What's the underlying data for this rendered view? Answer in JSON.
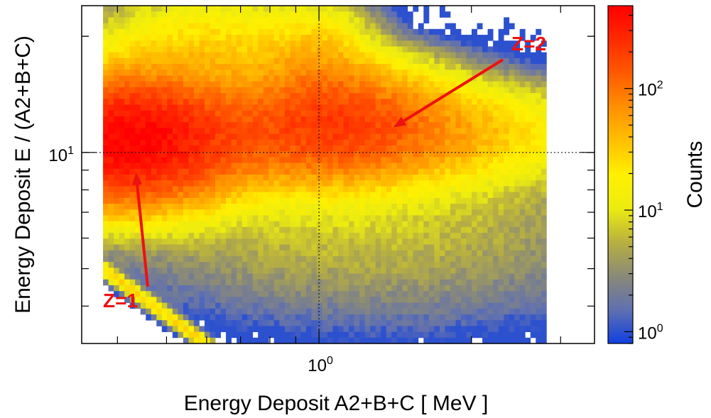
{
  "chart_data": {
    "type": "heatmap",
    "title": "",
    "xlabel": "Energy Deposit A2+B+C [ MeV ]",
    "ylabel": "Energy Deposit E / (A2+B+C)",
    "xscale": "log",
    "yscale": "log",
    "xlim": [
      0.34,
      3.5
    ],
    "ylim": [
      3.2,
      24
    ],
    "x_ticks": [
      {
        "value": 1,
        "label": "10",
        "exp": "0"
      }
    ],
    "y_ticks": [
      {
        "value": 10,
        "label": "10",
        "exp": "1"
      }
    ],
    "reference_lines": {
      "x": 1,
      "y": 10,
      "style": "dotted"
    },
    "colorbar": {
      "label": "Counts",
      "scale": "log",
      "range": [
        0.8,
        480
      ],
      "ticks": [
        {
          "value": 1,
          "label": "10",
          "exp": "0"
        },
        {
          "value": 10,
          "label": "10",
          "exp": "1"
        },
        {
          "value": 100,
          "label": "10",
          "exp": "2"
        }
      ],
      "palette": [
        "#1040e0",
        "#6070b0",
        "#8a8a78",
        "#b8b040",
        "#ecec10",
        "#fff000",
        "#ffc000",
        "#ff9000",
        "#ff5a00",
        "#ff2a00",
        "#ff0000"
      ]
    },
    "populations": [
      {
        "name": "Z=1",
        "x_center": 0.42,
        "y_center": 10.7,
        "peak_counts": 420
      },
      {
        "name": "Z=2",
        "x_center": 1.1,
        "y_center": 12,
        "peak_counts": 130
      }
    ],
    "annotations": [
      {
        "text": "Z=1",
        "color": "#ee1111",
        "points_to": {
          "x": 0.435,
          "y": 8.9
        }
      },
      {
        "text": "Z=2",
        "color": "#ee1111",
        "points_to": {
          "x": 1.4,
          "y": 11.6
        }
      }
    ]
  }
}
